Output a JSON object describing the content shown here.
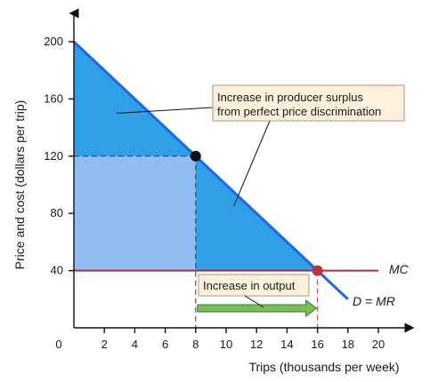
{
  "chart_data": {
    "type": "line",
    "xlabel": "Trips (thousands per week)",
    "ylabel": "Price and cost (dollars per trip)",
    "x_origin_label": "0",
    "xlim": [
      0,
      20
    ],
    "ylim": [
      0,
      200
    ],
    "x_ticks": [
      2,
      4,
      6,
      8,
      10,
      12,
      14,
      16,
      18,
      20
    ],
    "y_ticks": [
      40,
      80,
      120,
      160,
      200
    ],
    "series": [
      {
        "name": "D = MR",
        "x": [
          0,
          18
        ],
        "y": [
          200,
          20
        ]
      },
      {
        "name": "MC",
        "x": [
          0,
          20
        ],
        "y": [
          40,
          40
        ]
      }
    ],
    "points": [
      {
        "x": 8,
        "y": 120
      },
      {
        "x": 16,
        "y": 40
      }
    ],
    "shaded_regions": [
      {
        "x": [
          0,
          0,
          16
        ],
        "y": [
          200,
          40,
          40
        ]
      },
      {
        "x": [
          0,
          8,
          8,
          0
        ],
        "y": [
          40,
          40,
          120,
          120
        ]
      }
    ],
    "guides": {
      "vertical_x": 8,
      "vertical_x_2": 16,
      "horizontal_y": 120
    },
    "annotations": [
      {
        "text_lines": [
          "Increase in producer surplus",
          "from perfect price discrimination"
        ],
        "pointer_targets": [
          {
            "x": 2.8,
            "y": 150
          },
          {
            "x": 10.5,
            "y": 85
          }
        ]
      },
      {
        "text_lines": [
          "Increase in output"
        ],
        "arrow_from": 8,
        "arrow_to": 16
      }
    ],
    "highlight_ticks": {
      "x": 16,
      "y": 40
    },
    "colors": {
      "main_fill": "#2f9fe7",
      "light_fill": "#91bdf3",
      "demand_line": "#1f66e8",
      "mc_line": "#b52a37",
      "highlight_text": "#b52a37",
      "callout_fill": "#fff1dc",
      "callout_border": "#bf8f7f",
      "arrow_fill": "#7abf53",
      "point_black": "#111111",
      "point_red": "#c1303e"
    }
  }
}
